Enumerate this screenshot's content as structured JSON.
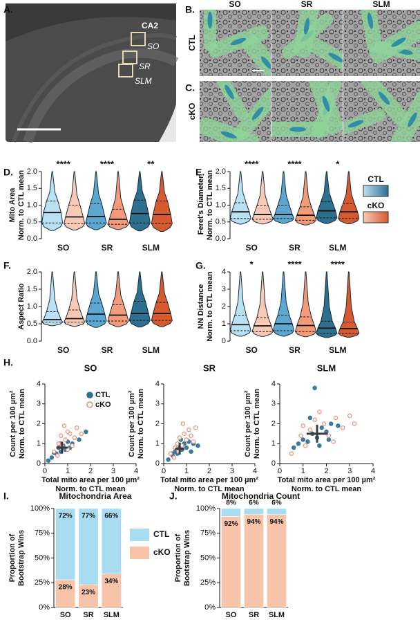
{
  "panel_a": {
    "label": "A.",
    "regions": [
      "CA2",
      "SO",
      "SR",
      "SLM"
    ]
  },
  "panel_bc": {
    "labels": [
      "B.",
      "C."
    ],
    "columns": [
      "SO",
      "SR",
      "SLM"
    ],
    "rows": [
      "CTL",
      "cKO"
    ]
  },
  "chart_data": [
    {
      "type": "violin",
      "panel_label": "D.",
      "ylabel": [
        "Mito Area",
        "Norm. to CTL mean"
      ],
      "categories": [
        "SO",
        "SR",
        "SLM"
      ],
      "stars": [
        "****",
        "****",
        "**"
      ],
      "ylim": [
        0,
        2
      ],
      "yticks": [
        {
          "value": 0,
          "label": "0.0"
        },
        0.5,
        {
          "value": 1,
          "label": "1.0"
        },
        1.5,
        {
          "value": 2,
          "label": "2.0"
        }
      ],
      "series": [
        {
          "colors": [
            "#b9e1f3",
            "#5ba7d0",
            "#2d6f8f"
          ],
          "q1": [
            0.47,
            0.47,
            0.47
          ],
          "median": [
            0.78,
            0.66,
            0.75
          ],
          "q3": [
            1.12,
            1.05,
            1.15
          ]
        },
        {
          "colors": [
            "#f8c9b5",
            "#f29b79",
            "#d65a2e"
          ],
          "q1": [
            0.45,
            0.43,
            0.45
          ],
          "median": [
            0.65,
            0.58,
            0.72
          ],
          "q3": [
            1.0,
            0.88,
            1.12
          ]
        }
      ]
    },
    {
      "type": "violin",
      "panel_label": "E.",
      "ylabel": [
        "Feret's Diameter",
        "Norm. to CTL mean"
      ],
      "categories": [
        "SO",
        "SR",
        "SLM"
      ],
      "stars": [
        "****",
        "****",
        "*"
      ],
      "ylim": [
        0,
        2
      ],
      "yticks": [
        {
          "value": 0,
          "label": "0.0"
        },
        0.5,
        {
          "value": 1,
          "label": "1.0"
        },
        1.5,
        {
          "value": 2,
          "label": "2.0"
        }
      ],
      "legend": true,
      "series": [
        {
          "name": "CTL",
          "colors": [
            "#b9e1f3",
            "#5ba7d0",
            "#2d6f8f"
          ],
          "q1": [
            0.6,
            0.6,
            0.62
          ],
          "median": [
            0.8,
            0.72,
            0.83
          ],
          "q3": [
            1.07,
            1.0,
            1.1
          ]
        },
        {
          "name": "cKO",
          "colors": [
            "#f8c9b5",
            "#f29b79",
            "#d65a2e"
          ],
          "q1": [
            0.58,
            0.55,
            0.6
          ],
          "median": [
            0.72,
            0.7,
            0.8
          ],
          "q3": [
            0.98,
            0.95,
            1.05
          ]
        }
      ]
    },
    {
      "type": "violin",
      "panel_label": "F.",
      "ylabel": [
        "Aspect Ratio"
      ],
      "categories": [
        "SO",
        "SR",
        "SLM"
      ],
      "ylim": [
        0,
        2
      ],
      "yticks": [
        {
          "value": 0,
          "label": "0.0"
        },
        0.5,
        {
          "value": 1,
          "label": "1.0"
        },
        1.5,
        {
          "value": 2,
          "label": "2.0"
        }
      ],
      "series": [
        {
          "colors": [
            "#b9e1f3",
            "#5ba7d0",
            "#2d6f8f"
          ],
          "q1": [
            0.55,
            0.58,
            0.6
          ],
          "median": [
            0.62,
            0.78,
            0.8
          ],
          "q3": [
            0.85,
            1.1,
            1.15
          ]
        },
        {
          "colors": [
            "#f8c9b5",
            "#f29b79",
            "#d65a2e"
          ],
          "q1": [
            0.55,
            0.58,
            0.6
          ],
          "median": [
            0.65,
            0.75,
            0.8
          ],
          "q3": [
            0.9,
            1.05,
            1.12
          ]
        }
      ]
    },
    {
      "type": "violin",
      "panel_label": "G.",
      "ylabel": [
        "NN Distance",
        "Norm. to CTL mean"
      ],
      "categories": [
        "SO",
        "SR",
        "SLM"
      ],
      "stars": [
        "*",
        "****",
        "****"
      ],
      "ylim": [
        0,
        4
      ],
      "yticks": [
        0,
        1,
        2,
        3,
        4
      ],
      "series": [
        {
          "colors": [
            "#b9e1f3",
            "#5ba7d0",
            "#2d6f8f"
          ],
          "q1": [
            0.6,
            0.6,
            0.45
          ],
          "median": [
            0.95,
            1.0,
            0.75
          ],
          "q3": [
            1.5,
            1.5,
            1.15
          ]
        },
        {
          "colors": [
            "#f8c9b5",
            "#f29b79",
            "#d65a2e"
          ],
          "q1": [
            0.55,
            0.55,
            0.45
          ],
          "median": [
            0.88,
            0.9,
            0.72
          ],
          "q3": [
            1.35,
            1.4,
            1.1
          ]
        }
      ]
    },
    {
      "type": "scatter",
      "panel_label": "H.",
      "title": "SO",
      "xlabel": [
        "Total mito area per 100 µm²",
        "Norm. to CTL mean"
      ],
      "ylabel": [
        "Count per 100 µm²",
        "Norm. to CTL mean"
      ],
      "xlim": [
        0,
        4
      ],
      "ylim": [
        0,
        4
      ],
      "xticks": [
        0,
        1,
        2,
        3,
        4
      ],
      "yticks": [
        0,
        1,
        2,
        3,
        4
      ],
      "center_x": 0.75,
      "center_y": 0.8,
      "spread_x": 0.25,
      "spread_y": 0.3,
      "legend": true,
      "series": [
        {
          "name": "CTL",
          "color": "#2a6f97",
          "filled": true,
          "x": [
            0.3,
            0.5,
            0.6,
            0.7,
            0.8,
            0.9,
            1.0,
            1.2,
            1.5,
            1.8,
            0.15,
            0.4,
            1.1,
            0.65
          ],
          "y": [
            0.3,
            0.5,
            0.8,
            0.6,
            0.9,
            0.7,
            1.1,
            1.0,
            1.2,
            1.6,
            0.15,
            0.55,
            0.8,
            1.0
          ]
        },
        {
          "name": "cKO",
          "color": "#e58e70",
          "filled": false,
          "x": [
            0.4,
            0.6,
            0.75,
            0.9,
            1.0,
            1.1,
            1.3,
            1.4,
            1.6,
            0.55,
            0.85,
            1.2,
            0.7,
            1.0
          ],
          "y": [
            0.6,
            1.0,
            0.9,
            1.2,
            0.7,
            1.5,
            1.3,
            1.8,
            1.5,
            0.4,
            1.9,
            0.9,
            1.4,
            1.6
          ]
        }
      ]
    },
    {
      "type": "scatter",
      "title": "SR",
      "xlabel": [
        "Total mito area per 100 µm²",
        "Norm. to CTL mean"
      ],
      "ylabel": [
        "Count per 100 µm²",
        "Norm. to CTL mean"
      ],
      "xlim": [
        0,
        4
      ],
      "ylim": [
        0,
        4
      ],
      "xticks": [
        0,
        1,
        2,
        3,
        4
      ],
      "yticks": [
        0,
        1,
        2,
        3,
        4
      ],
      "center_x": 0.7,
      "center_y": 0.75,
      "spread_x": 0.2,
      "spread_y": 0.3,
      "series": [
        {
          "color": "#2a6f97",
          "filled": true,
          "x": [
            0.2,
            0.4,
            0.5,
            0.6,
            0.7,
            0.8,
            0.9,
            1.0,
            1.1,
            1.3,
            1.5,
            0.35,
            0.75,
            1.2
          ],
          "y": [
            0.2,
            0.4,
            0.6,
            0.5,
            0.8,
            0.7,
            1.0,
            0.8,
            1.1,
            1.0,
            0.9,
            0.5,
            1.2,
            0.6
          ]
        },
        {
          "color": "#e58e70",
          "filled": false,
          "x": [
            0.3,
            0.5,
            0.6,
            0.7,
            0.8,
            0.9,
            1.0,
            1.1,
            1.2,
            1.4,
            0.45,
            0.85,
            1.3,
            0.65
          ],
          "y": [
            0.5,
            0.8,
            1.0,
            1.3,
            0.9,
            1.5,
            1.2,
            1.7,
            1.4,
            1.8,
            0.3,
            2.0,
            1.1,
            0.6
          ]
        }
      ]
    },
    {
      "type": "scatter",
      "title": "SLM",
      "xlabel": [
        "Total mito area per 100 µm²",
        "Norm. to CTL mean"
      ],
      "ylabel": [
        "Count per 100 µm²",
        "Norm. to CTL mean"
      ],
      "xlim": [
        0,
        4
      ],
      "ylim": [
        0,
        4
      ],
      "xticks": [
        0,
        1,
        2,
        3,
        4
      ],
      "yticks": [
        0,
        1,
        2,
        3,
        4
      ],
      "center_x": 1.6,
      "center_y": 1.5,
      "spread_x": 0.45,
      "spread_y": 0.45,
      "series": [
        {
          "color": "#2a6f97",
          "filled": true,
          "x": [
            0.8,
            1.0,
            1.2,
            1.4,
            1.6,
            1.8,
            2.0,
            2.2,
            2.5,
            1.5,
            1.7,
            0.6,
            1.3,
            2.1
          ],
          "y": [
            1.0,
            1.2,
            1.1,
            1.5,
            1.3,
            1.8,
            1.6,
            2.0,
            1.9,
            3.8,
            0.9,
            0.8,
            2.3,
            1.2
          ]
        },
        {
          "color": "#e58e70",
          "filled": false,
          "x": [
            0.5,
            0.9,
            1.1,
            1.3,
            1.5,
            1.9,
            2.1,
            2.4,
            2.7,
            3.0,
            3.2,
            1.7,
            1.0,
            2.3
          ],
          "y": [
            0.5,
            1.4,
            0.9,
            1.7,
            2.2,
            2.0,
            1.4,
            2.3,
            1.8,
            2.4,
            2.0,
            2.6,
            1.9,
            1.1
          ]
        }
      ]
    },
    {
      "type": "stacked_bar",
      "panel_label": "I.",
      "title": "Mitochondria Area",
      "ylabel": [
        "Proportion of",
        "Bootstrap Wins"
      ],
      "categories": [
        "SO",
        "SR",
        "SLM"
      ],
      "ylim": [
        0,
        100
      ],
      "yticks": [
        {
          "value": 0,
          "label": "0%"
        },
        {
          "value": 25,
          "label": "25%"
        },
        {
          "value": 50,
          "label": "50%"
        },
        {
          "value": 75,
          "label": "75%"
        },
        {
          "value": 100,
          "label": "100%"
        }
      ],
      "legend": true,
      "series": [
        {
          "name": "CTL",
          "color": "#a8dcf0",
          "values": [
            72,
            77,
            66
          ],
          "value_labels": [
            "72%",
            "77%",
            "66%"
          ]
        },
        {
          "name": "cKO",
          "color": "#f8c4a9",
          "values": [
            28,
            23,
            34
          ],
          "value_labels": [
            "28%",
            "23%",
            "34%"
          ]
        }
      ]
    },
    {
      "type": "stacked_bar",
      "panel_label": "J.",
      "title": "Mitochondria Count",
      "ylabel": [
        "Proportion of",
        "Bootstrap Wins"
      ],
      "categories": [
        "SO",
        "SR",
        "SLM"
      ],
      "ylim": [
        0,
        100
      ],
      "yticks": [
        {
          "value": 0,
          "label": "0%"
        },
        {
          "value": 25,
          "label": "25%"
        },
        {
          "value": 50,
          "label": "50%"
        },
        {
          "value": 75,
          "label": "75%"
        },
        {
          "value": 100,
          "label": "100%"
        }
      ],
      "series": [
        {
          "color": "#a8dcf0",
          "values": [
            8,
            6,
            6
          ],
          "value_labels": [
            "8%",
            "6%",
            "6%"
          ]
        },
        {
          "color": "#f8c4a9",
          "values": [
            92,
            94,
            94
          ],
          "value_labels": [
            "92%",
            "94%",
            "94%"
          ]
        }
      ]
    }
  ]
}
